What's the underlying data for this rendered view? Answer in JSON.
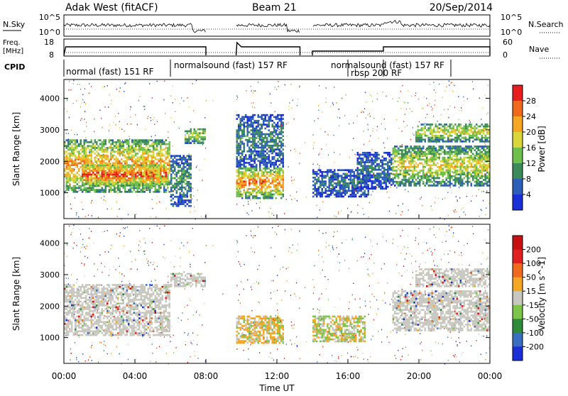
{
  "header": {
    "station": "Adak West (fitACF)",
    "beam": "Beam 21",
    "date": "20/Sep/2014"
  },
  "noise_panel": {
    "left_label": "N.Sky",
    "right_label": "N.Search",
    "left_ticks": [
      "10^5",
      "10^0"
    ],
    "right_ticks": [
      "10^5",
      "10^0"
    ]
  },
  "freq_panel": {
    "left_label_1": "Freq.",
    "left_label_2": "[MHz]",
    "right_label": "Nave",
    "left_ticks": [
      "18",
      "8"
    ],
    "right_ticks": [
      "60",
      "0"
    ]
  },
  "cpid": {
    "label": "CPID",
    "modes": [
      {
        "text": "normal (fast) 151 RF",
        "start": 0.0,
        "end": 6.0
      },
      {
        "text": "normalsound (fast) 157 RF",
        "start": 6.0,
        "end": 16.0
      },
      {
        "text": "rbsp 200 RF",
        "start": 16.0,
        "end": 18.0
      },
      {
        "text": "normalsound (fast) 157 RF",
        "start": 18.0,
        "end": 21.8
      }
    ],
    "labels": [
      {
        "text": "normal (fast) 151 RF"
      },
      {
        "text": "normalsound (fast) 157 RF"
      },
      {
        "text": "normalsound (fast) 157 RF"
      },
      {
        "text": "rbsp 200 RF"
      }
    ]
  },
  "chart_data": [
    {
      "type": "heatmap",
      "name": "power",
      "ylabel": "Slant Range [km]",
      "ylim": [
        180,
        4600
      ],
      "yticks": [
        "1000",
        "2000",
        "3000",
        "4000"
      ],
      "xlim": [
        0,
        24
      ],
      "colorbar_label": "Power [dB]",
      "colorbar_ticks": [
        "28",
        "24",
        "20",
        "16",
        "12",
        "8",
        "4"
      ],
      "colors": [
        "#1a2fd6",
        "#2d5fb8",
        "#3a8a5a",
        "#6fbf4e",
        "#d8d63a",
        "#f5a623",
        "#f06a1e",
        "#e81e1e"
      ],
      "echo_regions": [
        {
          "t0": 0.0,
          "t1": 6.0,
          "r0": 1000,
          "r1": 2700,
          "level": 0.75
        },
        {
          "t0": 1.0,
          "t1": 5.8,
          "r0": 1200,
          "r1": 1900,
          "level": 0.95
        },
        {
          "t0": 6.0,
          "t1": 7.2,
          "r0": 550,
          "r1": 2200,
          "level": 0.35
        },
        {
          "t0": 6.8,
          "t1": 8.0,
          "r0": 2550,
          "r1": 3050,
          "level": 0.55
        },
        {
          "t0": 9.7,
          "t1": 12.4,
          "r0": 800,
          "r1": 1800,
          "level": 0.8
        },
        {
          "t0": 9.7,
          "t1": 12.4,
          "r0": 1800,
          "r1": 3500,
          "level": 0.3
        },
        {
          "t0": 14.0,
          "t1": 17.2,
          "r0": 850,
          "r1": 1750,
          "level": 0.25
        },
        {
          "t0": 16.5,
          "t1": 18.5,
          "r0": 1100,
          "r1": 2300,
          "level": 0.25
        },
        {
          "t0": 18.5,
          "t1": 24.0,
          "r0": 1200,
          "r1": 2500,
          "level": 0.6
        },
        {
          "t0": 19.8,
          "t1": 24.0,
          "r0": 2600,
          "r1": 3200,
          "level": 0.6
        }
      ]
    },
    {
      "type": "heatmap",
      "name": "velocity",
      "ylabel": "Slant Range [km]",
      "ylim": [
        180,
        4600
      ],
      "yticks": [
        "1000",
        "2000",
        "3000",
        "4000"
      ],
      "xlim": [
        0,
        24
      ],
      "xlabel": "Time UT",
      "xticks": [
        "00:00",
        "04:00",
        "08:00",
        "12:00",
        "16:00",
        "20:00",
        "00:00"
      ],
      "colorbar_label": "Velocity [m s^-1]",
      "colorbar_ticks": [
        "200",
        "100",
        "50",
        "15",
        "-15",
        "-50",
        "-100",
        "-200"
      ],
      "colors": [
        "#1a2fd6",
        "#3a6ec0",
        "#2e8b3a",
        "#7cc44a",
        "#c8c8c0",
        "#f5a623",
        "#f06a1e",
        "#e02020",
        "#c81010"
      ],
      "echo_regions": [
        {
          "t0": 0.0,
          "t1": 6.0,
          "r0": 1050,
          "r1": 2700,
          "kind": "gray"
        },
        {
          "t0": 6.0,
          "t1": 8.0,
          "r0": 2600,
          "r1": 3050,
          "kind": "gray"
        },
        {
          "t0": 9.7,
          "t1": 12.4,
          "r0": 800,
          "r1": 1700,
          "kind": "orange"
        },
        {
          "t0": 14.0,
          "t1": 17.0,
          "r0": 850,
          "r1": 1700,
          "kind": "mixed"
        },
        {
          "t0": 18.5,
          "t1": 24.0,
          "r0": 1200,
          "r1": 2500,
          "kind": "gray"
        },
        {
          "t0": 19.8,
          "t1": 24.0,
          "r0": 2600,
          "r1": 3200,
          "kind": "gray"
        }
      ]
    }
  ]
}
